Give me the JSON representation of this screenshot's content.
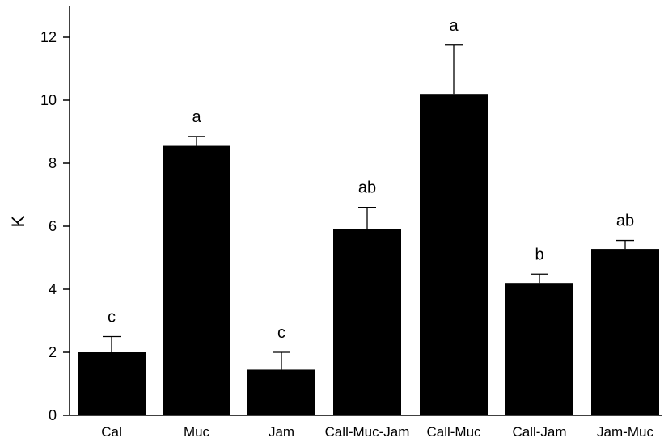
{
  "chart_data": {
    "type": "bar",
    "title": "",
    "xlabel": "",
    "ylabel": "K",
    "ylim": [
      0,
      13
    ],
    "yticks": [
      0,
      2,
      4,
      6,
      8,
      10,
      12
    ],
    "grid": false,
    "categories": [
      "Cal",
      "Muc",
      "Jam",
      "Call-Muc-Jam",
      "Call-Muc",
      "Call-Jam",
      "Jam-Muc"
    ],
    "values": [
      2.0,
      8.55,
      1.45,
      5.9,
      10.2,
      4.2,
      5.28
    ],
    "errors": [
      0.5,
      0.3,
      0.55,
      0.7,
      1.55,
      0.28,
      0.27
    ],
    "significance": [
      "c",
      "a",
      "c",
      "ab",
      "a",
      "b",
      "ab"
    ],
    "colors": {
      "bar": "#000000",
      "axis": "#000000"
    }
  }
}
